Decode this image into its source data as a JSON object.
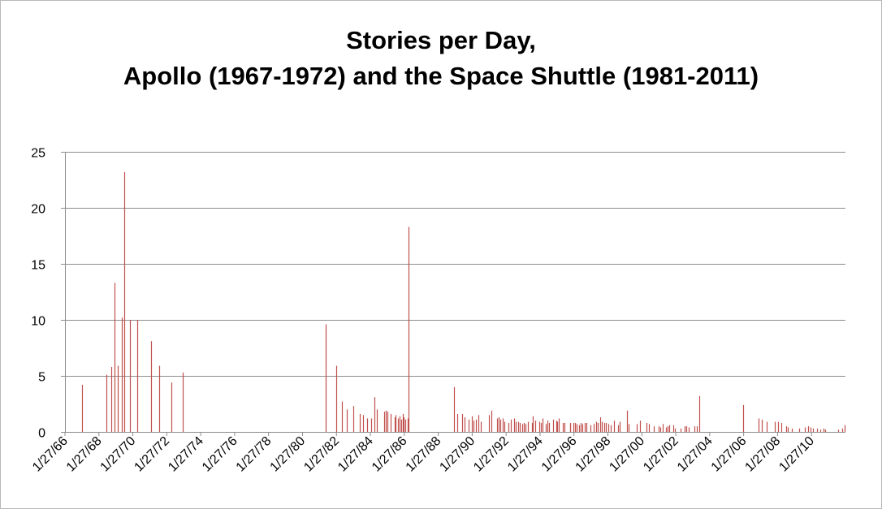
{
  "chart_data": {
    "type": "bar",
    "title_lines": [
      "Stories per Day,",
      "Apollo (1967-1972) and the Space Shuttle (1981-2011)"
    ],
    "xlabel": "",
    "ylabel": "",
    "ylim": [
      0,
      25
    ],
    "y_ticks": [
      "0",
      "5",
      "10",
      "15",
      "20",
      "25"
    ],
    "x_tick_labels": [
      "1/27/66",
      "1/27/68",
      "1/27/70",
      "1/27/72",
      "1/27/74",
      "1/27/76",
      "1/27/78",
      "1/27/80",
      "1/27/82",
      "1/27/84",
      "1/27/86",
      "1/27/88",
      "1/27/90",
      "1/27/92",
      "1/27/94",
      "1/27/96",
      "1/27/98",
      "1/27/00",
      "1/27/02",
      "1/27/04",
      "1/27/06",
      "1/27/08",
      "1/27/10"
    ],
    "xlim": [
      "1966-01-27",
      "2011-07-21"
    ],
    "grid": true,
    "legend": "none",
    "bar_color": "#c0504d",
    "x": [
      "1967-01-27",
      "1968-07-01",
      "1968-10-11",
      "1968-12-21",
      "1969-03-03",
      "1969-05-18",
      "1969-07-16",
      "1969-11-14",
      "1970-04-11",
      "1971-01-31",
      "1971-07-26",
      "1972-04-16",
      "1972-12-07",
      "1981-04-12",
      "1981-11-12",
      "1982-03-22",
      "1982-06-27",
      "1982-11-11",
      "1983-04-04",
      "1983-06-18",
      "1983-08-30",
      "1983-11-28",
      "1984-02-03",
      "1984-04-06",
      "1984-08-30",
      "1984-10-05",
      "1984-11-08",
      "1985-01-24",
      "1985-04-12",
      "1985-04-29",
      "1985-06-17",
      "1985-07-29",
      "1985-08-27",
      "1985-10-03",
      "1985-10-30",
      "1985-11-26",
      "1986-01-12",
      "1986-01-28",
      "1988-09-29",
      "1988-12-02",
      "1989-03-13",
      "1989-05-04",
      "1989-08-08",
      "1989-10-18",
      "1989-11-22",
      "1990-01-09",
      "1990-02-28",
      "1990-04-24",
      "1990-10-06",
      "1990-12-02",
      "1991-04-05",
      "1991-04-28",
      "1991-06-05",
      "1991-08-02",
      "1991-09-12",
      "1991-11-24",
      "1992-01-22",
      "1992-03-24",
      "1992-05-07",
      "1992-06-25",
      "1992-07-31",
      "1992-09-12",
      "1992-10-22",
      "1992-12-02",
      "1993-01-13",
      "1993-04-08",
      "1993-04-26",
      "1993-06-21",
      "1993-09-12",
      "1993-10-18",
      "1993-12-02",
      "1994-02-03",
      "1994-03-04",
      "1994-04-09",
      "1994-07-08",
      "1994-09-09",
      "1994-09-30",
      "1994-11-03",
      "1995-02-03",
      "1995-03-02",
      "1995-06-27",
      "1995-07-13",
      "1995-09-07",
      "1995-10-20",
      "1995-11-12",
      "1996-01-11",
      "1996-02-22",
      "1996-03-22",
      "1996-05-19",
      "1996-06-20",
      "1996-09-16",
      "1996-11-19",
      "1997-01-12",
      "1997-02-11",
      "1997-04-04",
      "1997-05-15",
      "1997-07-01",
      "1997-08-07",
      "1997-09-25",
      "1997-11-19",
      "1998-01-22",
      "1998-04-17",
      "1998-06-02",
      "1998-10-29",
      "1998-12-04",
      "1999-05-27",
      "1999-07-23",
      "1999-12-19",
      "2000-02-11",
      "2000-05-19",
      "2000-09-08",
      "2000-10-11",
      "2000-11-30",
      "2001-02-07",
      "2001-03-08",
      "2001-04-19",
      "2001-07-12",
      "2001-08-10",
      "2001-12-05",
      "2002-03-01",
      "2002-04-08",
      "2002-06-05",
      "2002-10-07",
      "2002-11-23",
      "2003-01-16",
      "2005-07-26",
      "2006-07-04",
      "2006-09-09",
      "2006-12-09",
      "2007-06-08",
      "2007-08-08",
      "2007-10-23",
      "2008-02-07",
      "2008-03-11",
      "2008-05-31",
      "2008-11-14",
      "2009-03-15",
      "2009-05-11",
      "2009-07-15",
      "2009-08-28",
      "2009-11-16",
      "2010-02-08",
      "2010-04-05",
      "2010-05-14",
      "2011-02-24",
      "2011-05-16",
      "2011-07-08"
    ],
    "values": [
      4.2,
      5.1,
      5.8,
      13.3,
      5.9,
      10.2,
      23.2,
      10,
      10,
      8.1,
      5.9,
      4.4,
      5.3,
      9.6,
      5.9,
      2.7,
      2,
      2.3,
      1.6,
      1.5,
      1.2,
      1.2,
      3.1,
      2,
      1.8,
      1.9,
      1.8,
      1.6,
      1.3,
      1.5,
      1.2,
      1.4,
      1.1,
      1.6,
      1.3,
      1.1,
      1.2,
      18.3,
      4,
      1.6,
      1.6,
      1.3,
      1.1,
      1.4,
      1,
      1.1,
      1.5,
      0.9,
      1.5,
      1.9,
      1.2,
      1.3,
      1.1,
      1.2,
      0.9,
      0.8,
      1.1,
      1.2,
      0.9,
      0.9,
      0.8,
      0.7,
      0.8,
      0.7,
      0.9,
      0.8,
      1.4,
      1,
      0.9,
      0.8,
      1.2,
      0.7,
      1,
      0.8,
      1.1,
      1,
      0.9,
      1.2,
      0.8,
      0.8,
      0.7,
      0.8,
      0.8,
      0.8,
      0.7,
      0.6,
      0.8,
      0.7,
      0.8,
      0.8,
      0.6,
      0.7,
      0.9,
      0.8,
      1.3,
      0.9,
      0.8,
      0.8,
      0.7,
      0.6,
      1,
      0.6,
      0.9,
      1.9,
      0.7,
      0.7,
      1,
      0.8,
      0.7,
      0.5,
      0.5,
      0.4,
      0.7,
      0.4,
      0.5,
      0.6,
      0.6,
      0.3,
      0.3,
      0.5,
      0.5,
      0.4,
      0.5,
      0.5,
      3.2,
      2.4,
      1.2,
      1.1,
      0.9,
      0.9,
      0.9,
      0.8,
      0.5,
      0.4,
      0.3,
      0.3,
      0.4,
      0.5,
      0.4,
      0.3,
      0.3,
      0.2,
      0.3,
      0.2,
      0.2,
      0.3,
      0.6
    ]
  }
}
